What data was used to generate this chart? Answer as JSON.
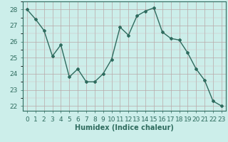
{
  "x": [
    0,
    1,
    2,
    3,
    4,
    5,
    6,
    7,
    8,
    9,
    10,
    11,
    12,
    13,
    14,
    15,
    16,
    17,
    18,
    19,
    20,
    21,
    22,
    23
  ],
  "y": [
    28.0,
    27.4,
    26.7,
    25.1,
    25.8,
    23.8,
    24.3,
    23.5,
    23.5,
    24.0,
    24.9,
    26.9,
    26.4,
    27.6,
    27.9,
    28.1,
    26.6,
    26.2,
    26.1,
    25.3,
    24.3,
    23.6,
    22.3,
    22.0
  ],
  "line_color": "#2e6b5e",
  "marker": "D",
  "marker_size": 2.0,
  "line_width": 1.0,
  "bg_color": "#cceeea",
  "grid_color_major": "#b8a8a8",
  "grid_color_minor": "#d4bcbc",
  "xlabel": "Humidex (Indice chaleur)",
  "tick_label_color": "#2e6b5e",
  "ylim": [
    21.7,
    28.5
  ],
  "yticks": [
    22,
    23,
    24,
    25,
    26,
    27,
    28
  ],
  "xlim": [
    -0.5,
    23.5
  ],
  "xticks": [
    0,
    1,
    2,
    3,
    4,
    5,
    6,
    7,
    8,
    9,
    10,
    11,
    12,
    13,
    14,
    15,
    16,
    17,
    18,
    19,
    20,
    21,
    22,
    23
  ],
  "xlabel_fontsize": 7,
  "tick_fontsize": 6.5
}
